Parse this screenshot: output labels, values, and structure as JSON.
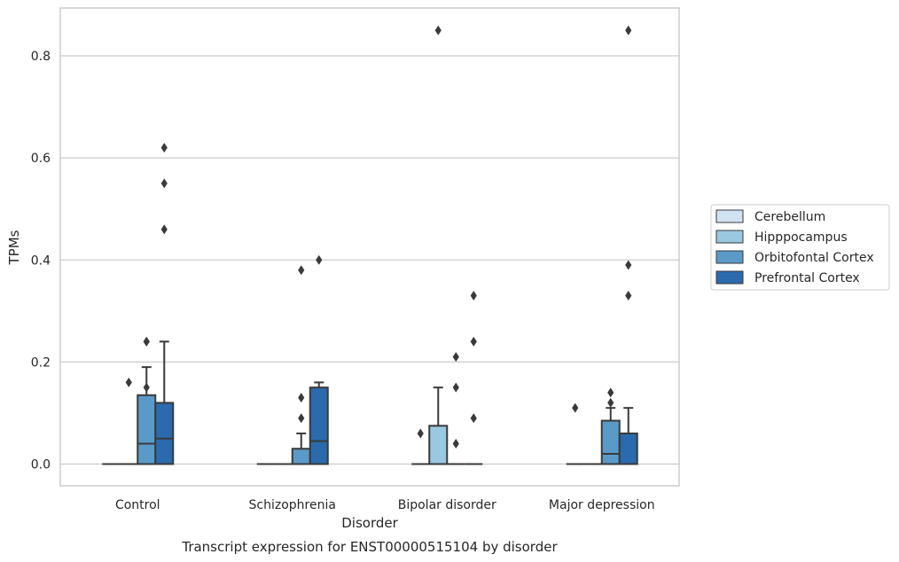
{
  "chart_data": {
    "type": "box",
    "title": "",
    "caption": "Transcript expression for ENST00000515104 by disorder",
    "xlabel": "Disorder",
    "ylabel": "TPMs",
    "ylim": [
      -0.04,
      0.895
    ],
    "yticks": [
      0.0,
      0.2,
      0.4,
      0.6,
      0.8
    ],
    "ytick_labels": [
      "0.0",
      "0.2",
      "0.4",
      "0.6",
      "0.8"
    ],
    "grid": "horizontal",
    "legend_placement": "right",
    "categories": [
      "Control",
      "Schizophrenia",
      "Bipolar disorder",
      "Major depression"
    ],
    "series": [
      {
        "name": "Cerebellum",
        "color": "#d1e2f2",
        "boxes": [
          {
            "q1": 0,
            "median": 0,
            "q3": 0,
            "whisker_low": 0,
            "whisker_high": 0,
            "outliers": []
          },
          {
            "q1": 0,
            "median": 0,
            "q3": 0,
            "whisker_low": 0,
            "whisker_high": 0,
            "outliers": []
          },
          {
            "q1": 0,
            "median": 0,
            "q3": 0,
            "whisker_low": 0,
            "whisker_high": 0,
            "outliers": [
              0.06
            ]
          },
          {
            "q1": 0,
            "median": 0,
            "q3": 0,
            "whisker_low": 0,
            "whisker_high": 0,
            "outliers": [
              0.11
            ]
          }
        ]
      },
      {
        "name": "Hipppocampus",
        "color": "#9ac8e0",
        "boxes": [
          {
            "q1": 0,
            "median": 0,
            "q3": 0,
            "whisker_low": 0,
            "whisker_high": 0,
            "outliers": [
              0.16
            ]
          },
          {
            "q1": 0,
            "median": 0,
            "q3": 0,
            "whisker_low": 0,
            "whisker_high": 0,
            "outliers": []
          },
          {
            "q1": 0,
            "median": 0,
            "q3": 0.075,
            "whisker_low": 0,
            "whisker_high": 0.15,
            "outliers": [
              0.85
            ]
          },
          {
            "q1": 0,
            "median": 0,
            "q3": 0,
            "whisker_low": 0,
            "whisker_high": 0,
            "outliers": []
          }
        ]
      },
      {
        "name": "Orbitofontal Cortex",
        "color": "#5a9ac9",
        "boxes": [
          {
            "q1": 0,
            "median": 0.04,
            "q3": 0.135,
            "whisker_low": 0,
            "whisker_high": 0.19,
            "outliers": [
              0.24,
              0.15
            ]
          },
          {
            "q1": 0,
            "median": 0,
            "q3": 0.03,
            "whisker_low": 0,
            "whisker_high": 0.06,
            "outliers": [
              0.13,
              0.09
            ]
          },
          {
            "q1": 0,
            "median": 0,
            "q3": 0,
            "whisker_low": 0,
            "whisker_high": 0,
            "outliers": [
              0.21,
              0.15,
              0.04
            ]
          },
          {
            "q1": 0,
            "median": 0.02,
            "q3": 0.085,
            "whisker_low": 0,
            "whisker_high": 0.11,
            "outliers": [
              0.14,
              0.12
            ]
          }
        ]
      },
      {
        "name": "Prefrontal Cortex",
        "color": "#2a6aad",
        "boxes": [
          {
            "q1": 0,
            "median": 0.05,
            "q3": 0.12,
            "whisker_low": 0,
            "whisker_high": 0.24,
            "outliers": [
              0.62,
              0.55,
              0.46
            ]
          },
          {
            "q1": 0,
            "median": 0.045,
            "q3": 0.15,
            "whisker_low": 0,
            "whisker_high": 0.16,
            "outliers": [
              0.4
            ]
          },
          {
            "q1": 0,
            "median": 0,
            "q3": 0,
            "whisker_low": 0,
            "whisker_high": 0,
            "outliers": [
              0.33,
              0.24,
              0.09
            ]
          },
          {
            "q1": 0,
            "median": 0,
            "q3": 0.06,
            "whisker_low": 0,
            "whisker_high": 0.11,
            "outliers": [
              0.85,
              0.39,
              0.33
            ]
          }
        ]
      }
    ]
  },
  "extra_outliers": {
    "Control": {
      "Orbitofontal Cortex": [
        0.24
      ]
    },
    "Schizophrenia": {
      "Orbitofontal Cortex": [
        0.38
      ]
    },
    "Bipolar disorder": {},
    "Major depression": {}
  }
}
